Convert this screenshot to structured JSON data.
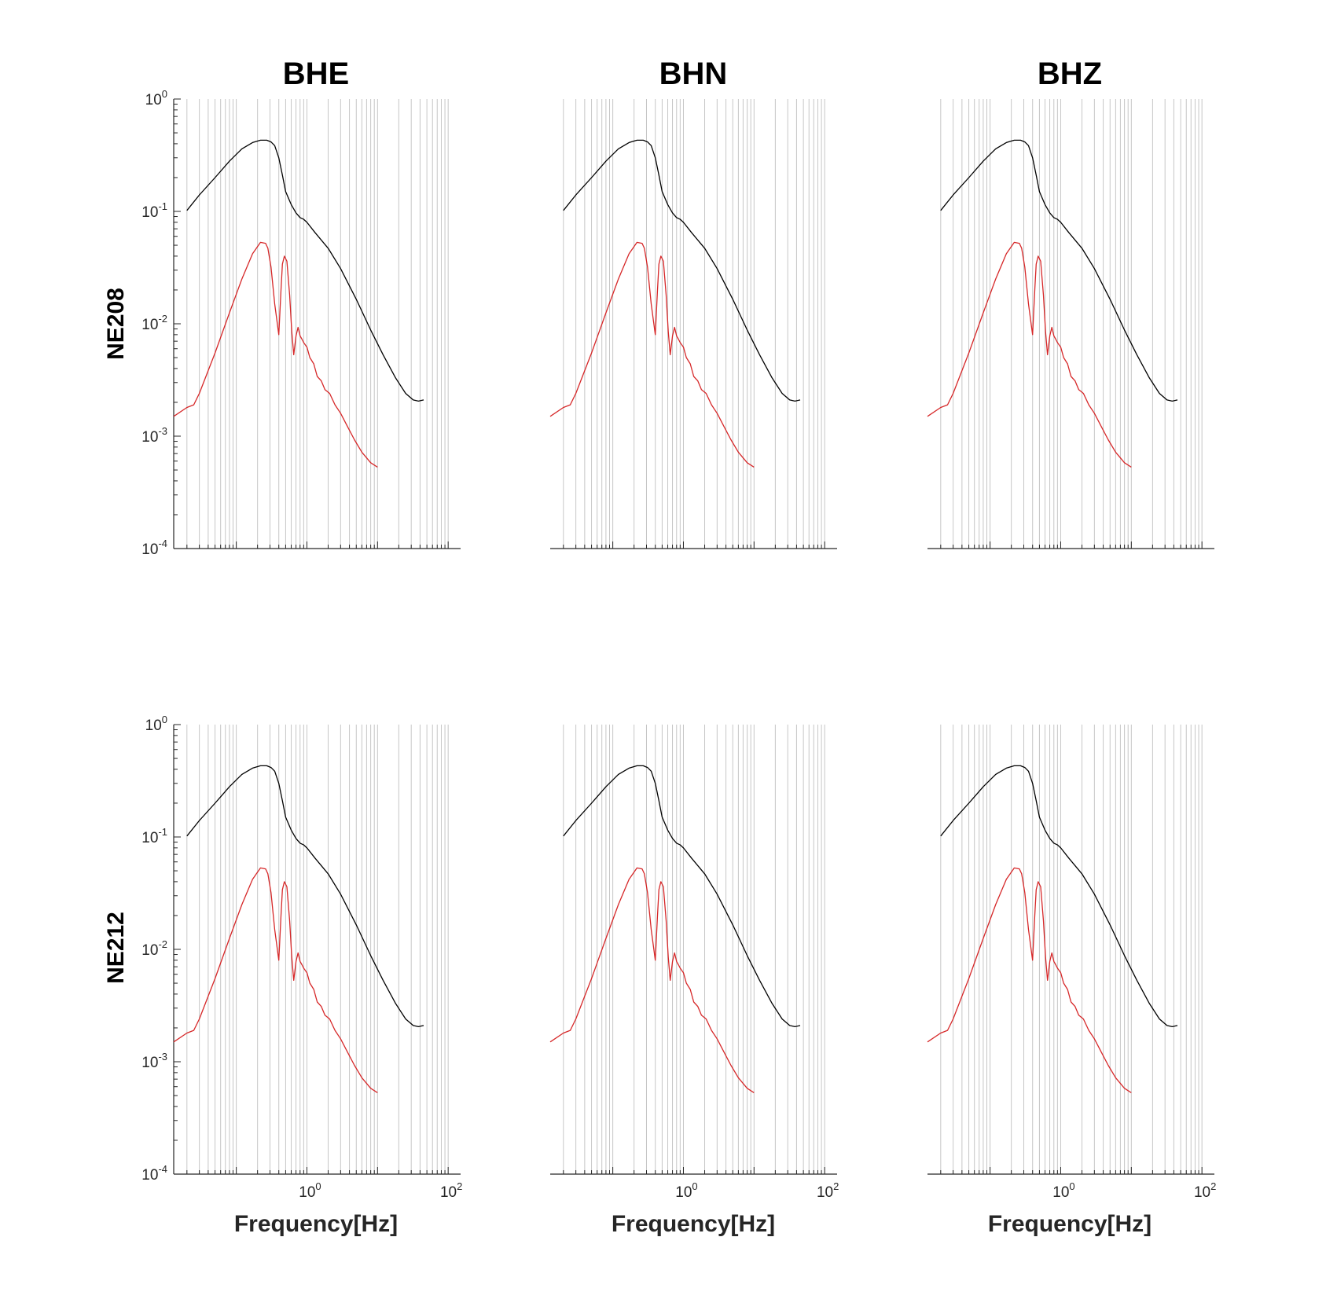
{
  "figure": {
    "columns": [
      "BHE",
      "BHN",
      "BHZ"
    ],
    "rows": [
      "NE208",
      "NE212"
    ],
    "xlabel": "Frequency[Hz]"
  },
  "colors": {
    "black_series": "#000000",
    "red_series": "#d62728",
    "grid": "#c6c6c6",
    "axis": "#262626"
  },
  "chart_data": [
    {
      "row": "NE208",
      "column": "BHE",
      "type": "line"
    },
    {
      "row": "NE208",
      "column": "BHN",
      "type": "line"
    },
    {
      "row": "NE208",
      "column": "BHZ",
      "type": "line"
    },
    {
      "row": "NE212",
      "column": "BHE",
      "type": "line"
    },
    {
      "row": "NE212",
      "column": "BHN",
      "type": "line"
    },
    {
      "row": "NE212",
      "column": "BHZ",
      "type": "line"
    }
  ],
  "shared_axes": {
    "xscale": "log",
    "yscale": "log",
    "xlim": [
      0.013,
      150
    ],
    "ylim": [
      0.0001,
      1
    ],
    "xticks": [
      {
        "base": "10",
        "exp": "0",
        "value": 1
      },
      {
        "base": "10",
        "exp": "2",
        "value": 100
      }
    ],
    "yticks": [
      {
        "base": "10",
        "exp": "0",
        "value": 1
      },
      {
        "base": "10",
        "exp": "-1",
        "value": 0.1
      },
      {
        "base": "10",
        "exp": "-2",
        "value": 0.01
      },
      {
        "base": "10",
        "exp": "-3",
        "value": 0.001
      },
      {
        "base": "10",
        "exp": "-4",
        "value": 0.0001
      }
    ],
    "grid": "vertical-minor"
  },
  "shared_series": [
    {
      "color": "#000000",
      "x": [
        0.02,
        0.03,
        0.05,
        0.08,
        0.12,
        0.17,
        0.22,
        0.27,
        0.31,
        0.35,
        0.4,
        0.45,
        0.5,
        0.6,
        0.7,
        0.8,
        0.9,
        1.0,
        1.3,
        2,
        3,
        5,
        8,
        12,
        18,
        25,
        32,
        38,
        45
      ],
      "y": [
        0.102,
        0.14,
        0.2,
        0.28,
        0.36,
        0.41,
        0.43,
        0.43,
        0.415,
        0.385,
        0.3,
        0.21,
        0.15,
        0.115,
        0.097,
        0.088,
        0.085,
        0.08,
        0.065,
        0.047,
        0.031,
        0.0165,
        0.0088,
        0.0053,
        0.0033,
        0.0024,
        0.0021,
        0.00205,
        0.0021
      ]
    },
    {
      "color": "#d62728",
      "x": [
        0.013,
        0.02,
        0.025,
        0.03,
        0.05,
        0.08,
        0.12,
        0.17,
        0.22,
        0.26,
        0.28,
        0.31,
        0.35,
        0.4,
        0.43,
        0.45,
        0.48,
        0.52,
        0.57,
        0.61,
        0.65,
        0.7,
        0.75,
        0.8,
        0.85,
        0.9,
        1.0,
        1.1,
        1.25,
        1.4,
        1.6,
        1.8,
        2.1,
        2.5,
        3,
        3.8,
        4.7,
        6,
        8,
        10
      ],
      "y": [
        0.0015,
        0.0018,
        0.0019,
        0.0024,
        0.0055,
        0.0125,
        0.025,
        0.042,
        0.053,
        0.052,
        0.047,
        0.032,
        0.015,
        0.008,
        0.02,
        0.034,
        0.04,
        0.036,
        0.018,
        0.0085,
        0.0053,
        0.0078,
        0.0093,
        0.0078,
        0.0073,
        0.0068,
        0.0062,
        0.005,
        0.0044,
        0.0034,
        0.0031,
        0.0026,
        0.0024,
        0.0019,
        0.0016,
        0.0012,
        0.00093,
        0.00072,
        0.00058,
        0.00053
      ]
    }
  ]
}
